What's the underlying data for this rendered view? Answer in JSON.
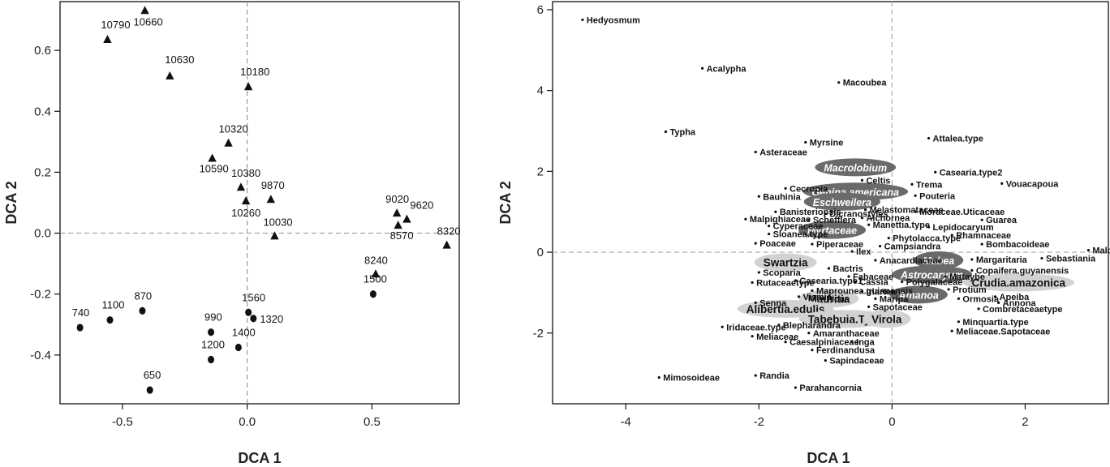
{
  "chart_data": [
    {
      "type": "scatter",
      "title": "",
      "xlabel": "DCA 1",
      "ylabel": "DCA 2",
      "xlim": [
        -0.75,
        0.85
      ],
      "ylim": [
        -0.56,
        0.76
      ],
      "xticks": [
        -0.5,
        0.0,
        0.5
      ],
      "xtick_labels": [
        "-0.5",
        "0.0",
        "0.5"
      ],
      "yticks": [
        -0.4,
        -0.2,
        0.0,
        0.2,
        0.4,
        0.6
      ],
      "ytick_labels": [
        "-0.4",
        "-0.2",
        "0.0",
        "0.2",
        "0.4",
        "0.6"
      ],
      "series": [
        {
          "name": "triangle samples",
          "marker": "triangle",
          "points": [
            {
              "label": "10660",
              "x": -0.41,
              "y": 0.73
            },
            {
              "label": "10790",
              "x": -0.56,
              "y": 0.635
            },
            {
              "label": "10630",
              "x": -0.31,
              "y": 0.515
            },
            {
              "label": "10180",
              "x": 0.005,
              "y": 0.48
            },
            {
              "label": "10320",
              "x": -0.075,
              "y": 0.295
            },
            {
              "label": "10590",
              "x": -0.14,
              "y": 0.245
            },
            {
              "label": "10380",
              "x": -0.025,
              "y": 0.15
            },
            {
              "label": "10260",
              "x": -0.005,
              "y": 0.105
            },
            {
              "label": "9870",
              "x": 0.095,
              "y": 0.11
            },
            {
              "label": "10030",
              "x": 0.11,
              "y": -0.01
            },
            {
              "label": "9020",
              "x": 0.6,
              "y": 0.065
            },
            {
              "label": "9620",
              "x": 0.64,
              "y": 0.045
            },
            {
              "label": "8570",
              "x": 0.605,
              "y": 0.025
            },
            {
              "label": "8320",
              "x": 0.8,
              "y": -0.04
            },
            {
              "label": "8240",
              "x": 0.515,
              "y": -0.135
            }
          ]
        },
        {
          "name": "circle samples",
          "marker": "circle",
          "points": [
            {
              "label": "1500",
              "x": 0.505,
              "y": -0.2
            },
            {
              "label": "870",
              "x": -0.42,
              "y": -0.255
            },
            {
              "label": "1100",
              "x": -0.55,
              "y": -0.285
            },
            {
              "label": "740",
              "x": -0.67,
              "y": -0.31
            },
            {
              "label": "1560",
              "x": 0.005,
              "y": -0.26
            },
            {
              "label": "1320",
              "x": 0.025,
              "y": -0.28
            },
            {
              "label": "990",
              "x": -0.145,
              "y": -0.325
            },
            {
              "label": "1400",
              "x": -0.035,
              "y": -0.375
            },
            {
              "label": "1200",
              "x": -0.145,
              "y": -0.415
            },
            {
              "label": "650",
              "x": -0.39,
              "y": -0.515
            }
          ]
        }
      ]
    },
    {
      "type": "scatter",
      "title": "",
      "xlabel": "DCA 1",
      "ylabel": "DCA 2",
      "xlim": [
        -5.1,
        3.25
      ],
      "ylim": [
        -3.75,
        6.2
      ],
      "xticks": [
        -4,
        -2,
        0,
        2
      ],
      "xtick_labels": [
        "-4",
        "-2",
        "0",
        "2"
      ],
      "yticks": [
        -2,
        0,
        2,
        4,
        6
      ],
      "ytick_labels": [
        "-2",
        "0",
        "2",
        "4",
        "6"
      ],
      "highlights": [
        {
          "label": "Macrolobium",
          "x": -0.55,
          "y": 2.1,
          "shade": "dark"
        },
        {
          "label": "Genipa.americana",
          "x": -0.55,
          "y": 1.5,
          "shade": "dark"
        },
        {
          "label": "Eschweilera",
          "x": -0.75,
          "y": 1.25,
          "shade": "dark"
        },
        {
          "label": "Myrtaceae",
          "x": -0.9,
          "y": 0.55,
          "shade": "dark"
        },
        {
          "label": "Swartzia",
          "x": -1.6,
          "y": -0.25,
          "shade": "light"
        },
        {
          "label": "Mabea",
          "x": 0.7,
          "y": -0.2,
          "shade": "dark"
        },
        {
          "label": "Astrocaryum",
          "x": 0.6,
          "y": -0.55,
          "shade": "dark"
        },
        {
          "label": "Crudia.amazonica",
          "x": 1.9,
          "y": -0.75,
          "shade": "light"
        },
        {
          "label": "Amanoa",
          "x": 0.4,
          "y": -1.05,
          "shade": "dark"
        },
        {
          "label": "Mauritia",
          "x": -0.95,
          "y": -1.15,
          "shade": "light"
        },
        {
          "label": "Alibertia.edulis",
          "x": -1.6,
          "y": -1.4,
          "shade": "light"
        },
        {
          "label": "Tabebuia.Type",
          "x": -0.7,
          "y": -1.65,
          "shade": "light"
        },
        {
          "label": "Virola",
          "x": -0.08,
          "y": -1.65,
          "shade": "light"
        }
      ],
      "points": [
        {
          "label": "Hedyosmum",
          "x": -4.65,
          "y": 5.75
        },
        {
          "label": "Acalypha",
          "x": -2.85,
          "y": 4.55
        },
        {
          "label": "Macoubea",
          "x": -0.8,
          "y": 4.2
        },
        {
          "label": "Typha",
          "x": -3.4,
          "y": 2.98
        },
        {
          "label": "Myrsine",
          "x": -1.3,
          "y": 2.72
        },
        {
          "label": "Asteraceae",
          "x": -2.05,
          "y": 2.48
        },
        {
          "label": "Attalea.type",
          "x": 0.55,
          "y": 2.82
        },
        {
          "label": "Casearia.type2",
          "x": 0.65,
          "y": 1.98
        },
        {
          "label": "Celtis",
          "x": -0.45,
          "y": 1.78
        },
        {
          "label": "Trema",
          "x": 0.3,
          "y": 1.68
        },
        {
          "label": "Vouacapoua",
          "x": 1.65,
          "y": 1.7
        },
        {
          "label": "Cecropia",
          "x": -1.6,
          "y": 1.58
        },
        {
          "label": "Bauhinia",
          "x": -2.0,
          "y": 1.38
        },
        {
          "label": "Pouteria",
          "x": 0.35,
          "y": 1.4
        },
        {
          "label": "Melastomataceae",
          "x": -0.4,
          "y": 1.05
        },
        {
          "label": "Banisteriopsis",
          "x": -1.75,
          "y": 1.0
        },
        {
          "label": "Dicranostyles",
          "x": -1.0,
          "y": 0.95
        },
        {
          "label": "Moraceae.Uticaceae",
          "x": 0.35,
          "y": 1.0
        },
        {
          "label": "Malpighiaceae",
          "x": -2.2,
          "y": 0.82
        },
        {
          "label": "Schefflera",
          "x": -1.25,
          "y": 0.8
        },
        {
          "label": "Alchornea",
          "x": -0.45,
          "y": 0.85
        },
        {
          "label": "Guarea",
          "x": 1.35,
          "y": 0.8
        },
        {
          "label": "Cyperaceae",
          "x": -1.85,
          "y": 0.65
        },
        {
          "label": "Manettia.type",
          "x": -0.35,
          "y": 0.68
        },
        {
          "label": "Lepidocaryum",
          "x": 0.55,
          "y": 0.62
        },
        {
          "label": "Sloanea.type",
          "x": -1.85,
          "y": 0.45
        },
        {
          "label": "Phytolacca.type",
          "x": -0.05,
          "y": 0.35
        },
        {
          "label": "Rhamnaceae",
          "x": 0.9,
          "y": 0.42
        },
        {
          "label": "Poaceae",
          "x": -2.05,
          "y": 0.22
        },
        {
          "label": "Piperaceae",
          "x": -1.2,
          "y": 0.2
        },
        {
          "label": "Campsiandra",
          "x": -0.18,
          "y": 0.15
        },
        {
          "label": "Bombacoideae",
          "x": 1.35,
          "y": 0.2
        },
        {
          "label": "Malouetia",
          "x": 2.95,
          "y": 0.05
        },
        {
          "label": "Ilex",
          "x": -0.6,
          "y": 0.02
        },
        {
          "label": "Sebastiania",
          "x": 2.25,
          "y": -0.15
        },
        {
          "label": "Anacardiaceae",
          "x": -0.25,
          "y": -0.2
        },
        {
          "label": "Margaritaria",
          "x": 1.2,
          "y": -0.18
        },
        {
          "label": "Scoparia",
          "x": -2.0,
          "y": -0.5
        },
        {
          "label": "Bactris",
          "x": -0.95,
          "y": -0.4
        },
        {
          "label": "Copaifera.guyanensis",
          "x": 1.2,
          "y": -0.45
        },
        {
          "label": "Fabaceae",
          "x": -0.65,
          "y": -0.6
        },
        {
          "label": "Mataybe",
          "x": 0.8,
          "y": -0.6
        },
        {
          "label": "Rutaceaetype",
          "x": -2.1,
          "y": -0.75
        },
        {
          "label": "Casearia.type1",
          "x": -1.45,
          "y": -0.7
        },
        {
          "label": "Cassia",
          "x": -0.55,
          "y": -0.73
        },
        {
          "label": "Polygalaceae",
          "x": 0.15,
          "y": -0.73
        },
        {
          "label": "Maprounea.guianensis",
          "x": -1.2,
          "y": -0.95
        },
        {
          "label": "Iriartea",
          "x": -0.45,
          "y": -0.97
        },
        {
          "label": "Protium",
          "x": 0.85,
          "y": -0.92
        },
        {
          "label": "Apeiba",
          "x": 1.55,
          "y": -1.1
        },
        {
          "label": "Senna",
          "x": -2.05,
          "y": -1.25
        },
        {
          "label": "Vismia",
          "x": -1.4,
          "y": -1.1
        },
        {
          "label": "Ficus",
          "x": -1.05,
          "y": -1.15
        },
        {
          "label": "Maripa",
          "x": -0.25,
          "y": -1.15
        },
        {
          "label": "Ormosia",
          "x": 1.0,
          "y": -1.15
        },
        {
          "label": "Annona",
          "x": 1.6,
          "y": -1.25
        },
        {
          "label": "Sapotaceae",
          "x": -0.35,
          "y": -1.35
        },
        {
          "label": "Combretaceaetype",
          "x": 1.3,
          "y": -1.4
        },
        {
          "label": "Iridaceae.type",
          "x": -2.55,
          "y": -1.85
        },
        {
          "label": "Blepharandra",
          "x": -1.7,
          "y": -1.8
        },
        {
          "label": "Minquartia.type",
          "x": 1.0,
          "y": -1.72
        },
        {
          "label": "Meliaceae",
          "x": -2.1,
          "y": -2.08
        },
        {
          "label": "Amaranthaceae",
          "x": -1.25,
          "y": -2.0
        },
        {
          "label": "Meliaceae.Sapotaceae",
          "x": 0.9,
          "y": -1.95
        },
        {
          "label": "Caesalpiniaceae",
          "x": -1.6,
          "y": -2.22
        },
        {
          "label": "Inga",
          "x": -0.6,
          "y": -2.22
        },
        {
          "label": "Ferdinandusa",
          "x": -1.2,
          "y": -2.42
        },
        {
          "label": "Sapindaceae",
          "x": -1.0,
          "y": -2.68
        },
        {
          "label": "Mimosoideae",
          "x": -3.5,
          "y": -3.1
        },
        {
          "label": "Randia",
          "x": -2.05,
          "y": -3.05
        },
        {
          "label": "Parahancornia",
          "x": -1.45,
          "y": -3.35
        }
      ]
    }
  ]
}
